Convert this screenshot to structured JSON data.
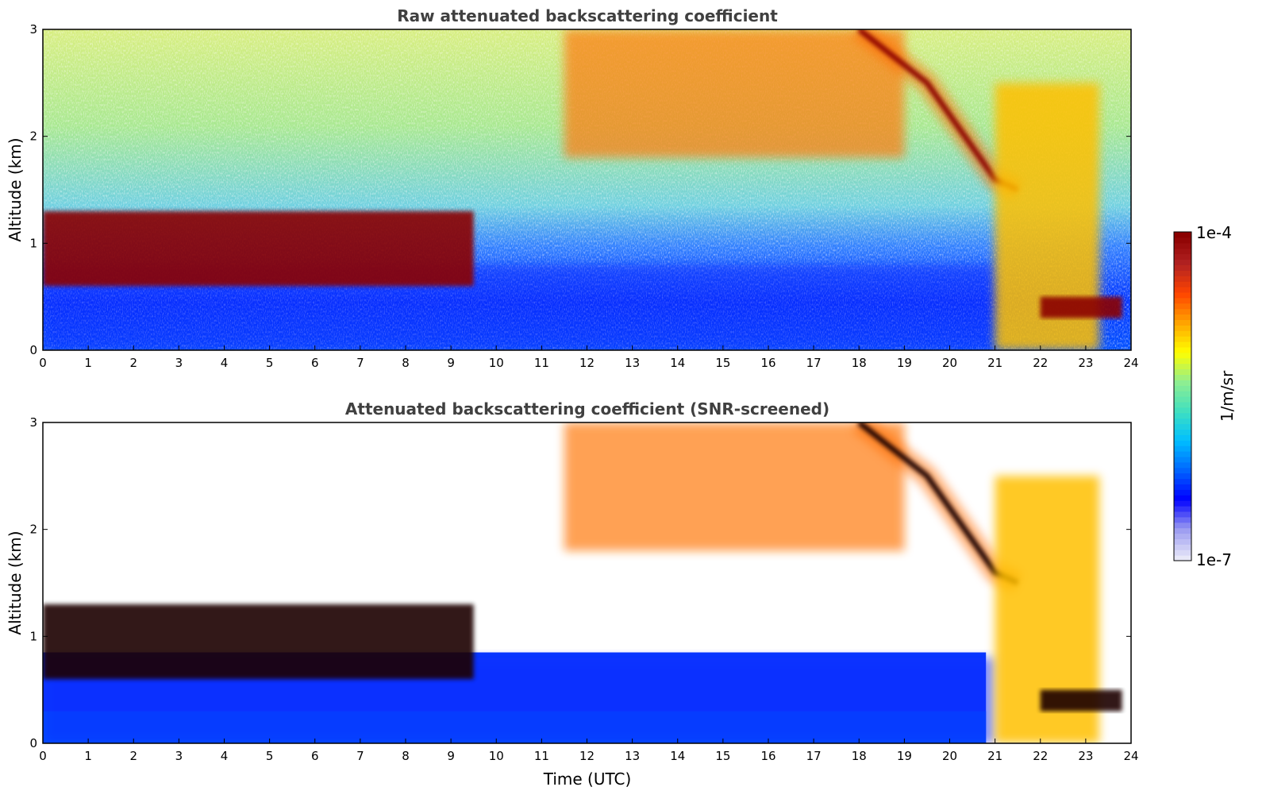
{
  "figure": {
    "xlabel": "Time (UTC)"
  },
  "colorbar": {
    "max_label": "1e-4",
    "min_label": "1e-7",
    "unit_label": "1/m/sr",
    "colors": [
      "#e8e8f8",
      "#9a9af0",
      "#0000ff",
      "#0066ff",
      "#00bfff",
      "#40e0c0",
      "#90ee90",
      "#ffff00",
      "#ffa500",
      "#ff4500",
      "#b22222",
      "#8b0000"
    ]
  },
  "chart_data": [
    {
      "type": "heatmap",
      "title": "Raw attenuated backscattering coefficient",
      "ylabel": "Altitude (km)",
      "xlabel": "",
      "xlim": [
        0,
        24
      ],
      "ylim": [
        0,
        3
      ],
      "xticks": [
        "0",
        "1",
        "2",
        "3",
        "4",
        "5",
        "6",
        "7",
        "8",
        "9",
        "10",
        "11",
        "12",
        "13",
        "14",
        "15",
        "16",
        "17",
        "18",
        "19",
        "20",
        "21",
        "22",
        "23",
        "24"
      ],
      "yticks": [
        "0",
        "1",
        "2",
        "3"
      ],
      "color_scale": {
        "min": "1e-7",
        "max": "1e-4",
        "scale": "log"
      },
      "features": [
        {
          "name": "boundary-layer",
          "x": [
            0,
            21
          ],
          "y": [
            0,
            0.8
          ],
          "level": "low"
        },
        {
          "name": "low-cloud-layer",
          "x": [
            0,
            9.5
          ],
          "y": [
            0.6,
            1.3
          ],
          "level": "max"
        },
        {
          "name": "cirrus",
          "x": [
            11.5,
            19
          ],
          "y": [
            1.8,
            3
          ],
          "level": "high"
        },
        {
          "name": "descending-cloud",
          "points": [
            [
              18,
              3
            ],
            [
              19.5,
              2.5
            ],
            [
              21,
              1.6
            ],
            [
              21.5,
              1.5
            ]
          ],
          "level": "max"
        },
        {
          "name": "precipitation",
          "x": [
            21,
            23.3
          ],
          "y": [
            0,
            2.5
          ],
          "level": "mid-high"
        },
        {
          "name": "low-cloud-late",
          "x": [
            22,
            23.8
          ],
          "y": [
            0.3,
            0.5
          ],
          "level": "max"
        }
      ]
    },
    {
      "type": "heatmap",
      "title": "Attenuated backscattering coefficient (SNR-screened)",
      "ylabel": "Altitude (km)",
      "xlabel": "Time (UTC)",
      "xlim": [
        0,
        24
      ],
      "ylim": [
        0,
        3
      ],
      "xticks": [
        "0",
        "1",
        "2",
        "3",
        "4",
        "5",
        "6",
        "7",
        "8",
        "9",
        "10",
        "11",
        "12",
        "13",
        "14",
        "15",
        "16",
        "17",
        "18",
        "19",
        "20",
        "21",
        "22",
        "23",
        "24"
      ],
      "yticks": [
        "0",
        "1",
        "2",
        "3"
      ],
      "color_scale": {
        "min": "1e-7",
        "max": "1e-4",
        "scale": "log"
      },
      "features": [
        {
          "name": "boundary-layer",
          "x": [
            0,
            21
          ],
          "y": [
            0,
            0.8
          ],
          "level": "low"
        },
        {
          "name": "low-cloud-layer",
          "x": [
            0,
            9.5
          ],
          "y": [
            0.6,
            1.3
          ],
          "level": "saturated"
        },
        {
          "name": "cirrus",
          "x": [
            11.5,
            19
          ],
          "y": [
            1.8,
            3
          ],
          "level": "high"
        },
        {
          "name": "descending-cloud",
          "points": [
            [
              18,
              3
            ],
            [
              19.5,
              2.5
            ],
            [
              21,
              1.6
            ],
            [
              21.5,
              1.5
            ]
          ],
          "level": "saturated"
        },
        {
          "name": "precipitation",
          "x": [
            21,
            23.3
          ],
          "y": [
            0,
            2.5
          ],
          "level": "mid-high"
        },
        {
          "name": "low-cloud-late",
          "x": [
            22,
            23.8
          ],
          "y": [
            0.3,
            0.5
          ],
          "level": "saturated"
        }
      ]
    }
  ]
}
